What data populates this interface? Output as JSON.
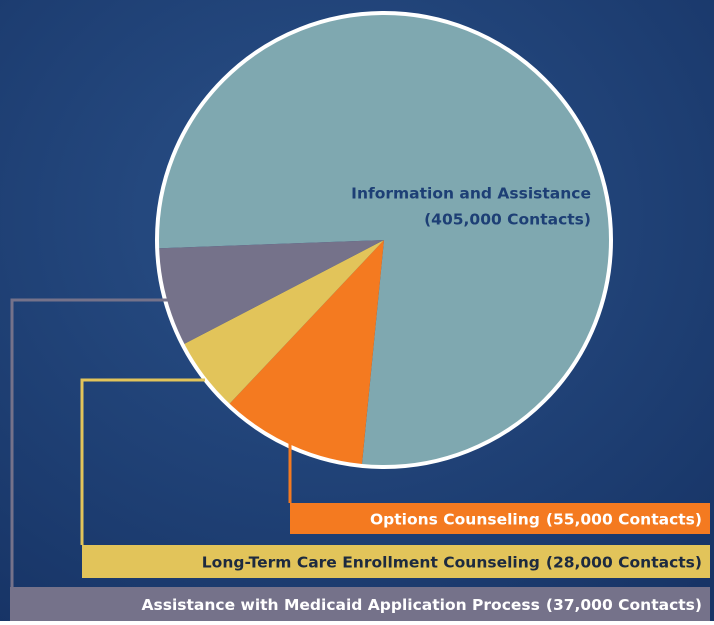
{
  "chart_data": {
    "type": "pie",
    "categories": [
      "Information and Assistance",
      "Options Counseling",
      "Long-Term Care Enrollment Counseling",
      "Assistance with Medicaid Application Process"
    ],
    "values": [
      405000,
      55000,
      28000,
      37000
    ],
    "value_labels": [
      "(405,000 Contacts)",
      "(55,000 Contacts)",
      "(28,000 Contacts)",
      "(37,000 Contacts)"
    ],
    "colors": [
      "#7fa8b0",
      "#f47a20",
      "#e2c45a",
      "#75728a"
    ]
  }
}
